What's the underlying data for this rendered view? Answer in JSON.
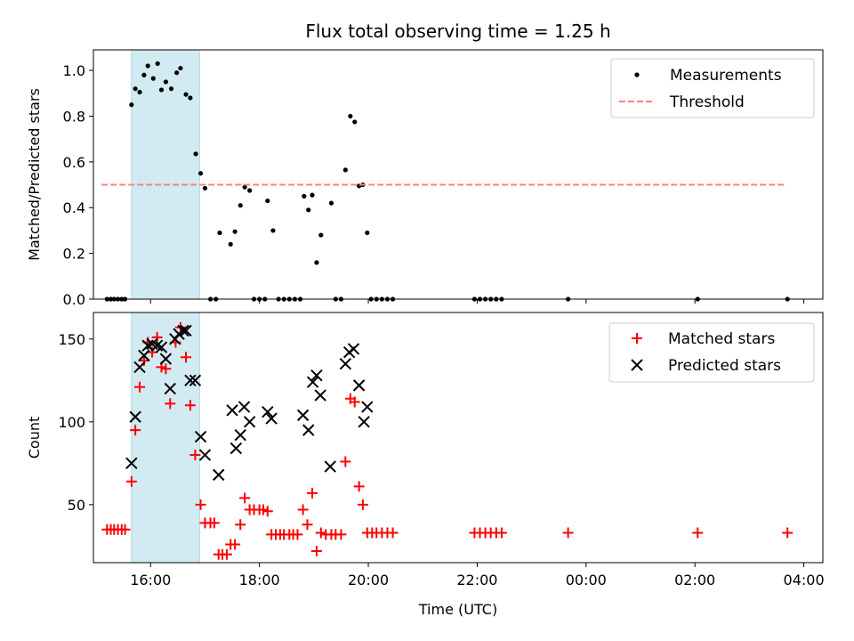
{
  "chart_data": {
    "title": "Flux total observing time = 1.25 h",
    "xlabel": "Time (UTC)",
    "x_unit": "hours UTC (values > 24 are after midnight)",
    "x_tick_labels": [
      "16:00",
      "18:00",
      "20:00",
      "22:00",
      "00:00",
      "02:00",
      "04:00"
    ],
    "xlim": [
      14.95,
      28.35
    ],
    "shaded_span": {
      "x": [
        15.65,
        16.9
      ],
      "color": "#add8e6"
    },
    "panels": [
      {
        "type": "scatter",
        "ylabel": "Matched/Predicted stars",
        "ylim": [
          0,
          1.09
        ],
        "y_ticks": [
          0.0,
          0.2,
          0.4,
          0.6,
          0.8,
          1.0
        ],
        "y_tick_labels": [
          "0.0",
          "0.2",
          "0.4",
          "0.6",
          "0.8",
          "1.0"
        ],
        "legend_position": "upper right",
        "series": [
          {
            "name": "Measurements",
            "marker": "dot",
            "color": "#000000",
            "points": [
              [
                15.2,
                0
              ],
              [
                15.27,
                0
              ],
              [
                15.33,
                0
              ],
              [
                15.4,
                0
              ],
              [
                15.47,
                0
              ],
              [
                15.53,
                0
              ],
              [
                15.65,
                0.85
              ],
              [
                15.72,
                0.92
              ],
              [
                15.8,
                0.905
              ],
              [
                15.88,
                0.98
              ],
              [
                15.95,
                1.02
              ],
              [
                16.05,
                0.965
              ],
              [
                16.13,
                1.03
              ],
              [
                16.2,
                0.915
              ],
              [
                16.28,
                0.95
              ],
              [
                16.38,
                0.92
              ],
              [
                16.48,
                0.99
              ],
              [
                16.55,
                1.01
              ],
              [
                16.65,
                0.895
              ],
              [
                16.73,
                0.88
              ],
              [
                16.83,
                0.635
              ],
              [
                16.92,
                0.55
              ],
              [
                17.0,
                0.485
              ],
              [
                17.1,
                0
              ],
              [
                17.2,
                0
              ],
              [
                17.27,
                0.29
              ],
              [
                17.47,
                0.24
              ],
              [
                17.55,
                0.295
              ],
              [
                17.65,
                0.41
              ],
              [
                17.73,
                0.49
              ],
              [
                17.82,
                0.475
              ],
              [
                17.9,
                0
              ],
              [
                18.0,
                0
              ],
              [
                18.1,
                0
              ],
              [
                18.15,
                0.43
              ],
              [
                18.25,
                0.3
              ],
              [
                18.35,
                0
              ],
              [
                18.45,
                0
              ],
              [
                18.55,
                0
              ],
              [
                18.65,
                0
              ],
              [
                18.75,
                0
              ],
              [
                18.82,
                0.45
              ],
              [
                18.9,
                0.39
              ],
              [
                18.97,
                0.455
              ],
              [
                19.05,
                0.16
              ],
              [
                19.13,
                0.28
              ],
              [
                19.32,
                0.42
              ],
              [
                19.4,
                0
              ],
              [
                19.5,
                0
              ],
              [
                19.58,
                0.565
              ],
              [
                19.67,
                0.8
              ],
              [
                19.75,
                0.775
              ],
              [
                19.83,
                0.495
              ],
              [
                19.9,
                0.5
              ],
              [
                19.98,
                0.29
              ],
              [
                20.05,
                0
              ],
              [
                20.15,
                0
              ],
              [
                20.25,
                0
              ],
              [
                20.35,
                0
              ],
              [
                20.45,
                0
              ],
              [
                21.95,
                0
              ],
              [
                22.05,
                0
              ],
              [
                22.15,
                0
              ],
              [
                22.25,
                0
              ],
              [
                22.35,
                0
              ],
              [
                22.45,
                0
              ],
              [
                23.67,
                0
              ],
              [
                26.05,
                0
              ],
              [
                27.7,
                0
              ]
            ]
          },
          {
            "name": "Threshold",
            "marker": "dashed-line",
            "color": "#ff7f7f",
            "points": [
              [
                15.1,
                0.5
              ],
              [
                27.65,
                0.5
              ]
            ]
          }
        ]
      },
      {
        "type": "scatter",
        "ylabel": "Count",
        "ylim": [
          15,
          166
        ],
        "y_ticks": [
          50,
          100,
          150
        ],
        "y_tick_labels": [
          "50",
          "100",
          "150"
        ],
        "legend_position": "upper right",
        "series": [
          {
            "name": "Matched stars",
            "marker": "plus",
            "color": "#ff0000",
            "points": [
              [
                15.2,
                35
              ],
              [
                15.27,
                35
              ],
              [
                15.33,
                35
              ],
              [
                15.4,
                35
              ],
              [
                15.47,
                35
              ],
              [
                15.53,
                35
              ],
              [
                15.65,
                64
              ],
              [
                15.72,
                95
              ],
              [
                15.8,
                121
              ],
              [
                15.88,
                137
              ],
              [
                15.95,
                148
              ],
              [
                16.03,
                142
              ],
              [
                16.12,
                151
              ],
              [
                16.2,
                133
              ],
              [
                16.28,
                132
              ],
              [
                16.36,
                111
              ],
              [
                16.46,
                148
              ],
              [
                16.55,
                157
              ],
              [
                16.65,
                139
              ],
              [
                16.73,
                110
              ],
              [
                16.82,
                80
              ],
              [
                16.92,
                50
              ],
              [
                17.0,
                39
              ],
              [
                17.1,
                39
              ],
              [
                17.17,
                39
              ],
              [
                17.25,
                20
              ],
              [
                17.32,
                20
              ],
              [
                17.4,
                20
              ],
              [
                17.47,
                26
              ],
              [
                17.55,
                26
              ],
              [
                17.65,
                38
              ],
              [
                17.73,
                54
              ],
              [
                17.82,
                47
              ],
              [
                17.9,
                47
              ],
              [
                18.0,
                47
              ],
              [
                18.07,
                47
              ],
              [
                18.15,
                46
              ],
              [
                18.22,
                32
              ],
              [
                18.3,
                32
              ],
              [
                18.38,
                32
              ],
              [
                18.45,
                32
              ],
              [
                18.55,
                32
              ],
              [
                18.62,
                32
              ],
              [
                18.7,
                32
              ],
              [
                18.8,
                47
              ],
              [
                18.88,
                38
              ],
              [
                18.97,
                57
              ],
              [
                19.05,
                22
              ],
              [
                19.13,
                33
              ],
              [
                19.22,
                32
              ],
              [
                19.32,
                32
              ],
              [
                19.4,
                32
              ],
              [
                19.5,
                32
              ],
              [
                19.58,
                76
              ],
              [
                19.67,
                114
              ],
              [
                19.75,
                112
              ],
              [
                19.83,
                61
              ],
              [
                19.9,
                50
              ],
              [
                19.98,
                33
              ],
              [
                20.07,
                33
              ],
              [
                20.15,
                33
              ],
              [
                20.25,
                33
              ],
              [
                20.35,
                33
              ],
              [
                20.45,
                33
              ],
              [
                21.95,
                33
              ],
              [
                22.05,
                33
              ],
              [
                22.15,
                33
              ],
              [
                22.25,
                33
              ],
              [
                22.35,
                33
              ],
              [
                22.45,
                33
              ],
              [
                23.67,
                33
              ],
              [
                26.05,
                33
              ],
              [
                27.7,
                33
              ]
            ]
          },
          {
            "name": "Predicted stars",
            "marker": "x",
            "color": "#000000",
            "points": [
              [
                15.65,
                75
              ],
              [
                15.72,
                103
              ],
              [
                15.8,
                133
              ],
              [
                15.88,
                140
              ],
              [
                15.95,
                146
              ],
              [
                16.03,
                147
              ],
              [
                16.12,
                146
              ],
              [
                16.2,
                145
              ],
              [
                16.28,
                138
              ],
              [
                16.36,
                120
              ],
              [
                16.45,
                150
              ],
              [
                16.52,
                153
              ],
              [
                16.6,
                155
              ],
              [
                16.65,
                155
              ],
              [
                16.73,
                125
              ],
              [
                16.82,
                125
              ],
              [
                16.92,
                91
              ],
              [
                17.0,
                80
              ],
              [
                17.25,
                68
              ],
              [
                17.5,
                107
              ],
              [
                17.57,
                84
              ],
              [
                17.65,
                92
              ],
              [
                17.72,
                109
              ],
              [
                17.82,
                100
              ],
              [
                18.15,
                106
              ],
              [
                18.22,
                102
              ],
              [
                18.8,
                104
              ],
              [
                18.9,
                95
              ],
              [
                18.98,
                124
              ],
              [
                19.05,
                128
              ],
              [
                19.12,
                116
              ],
              [
                19.3,
                73
              ],
              [
                19.58,
                135
              ],
              [
                19.65,
                142
              ],
              [
                19.73,
                144
              ],
              [
                19.83,
                122
              ],
              [
                19.92,
                100
              ],
              [
                19.98,
                109
              ]
            ]
          }
        ]
      }
    ]
  }
}
